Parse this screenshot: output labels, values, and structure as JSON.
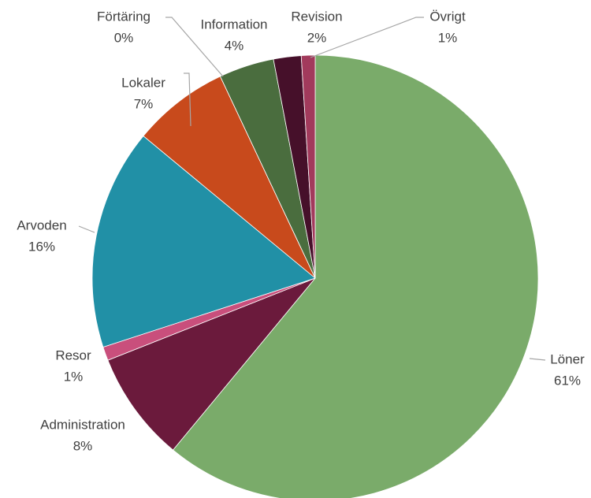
{
  "chart_data": {
    "type": "pie",
    "categories": [
      "Löner",
      "Administration",
      "Resor",
      "Arvoden",
      "Lokaler",
      "Förtäring",
      "Information",
      "Revision",
      "Övrigt"
    ],
    "values": [
      61,
      8,
      1,
      16,
      7,
      0,
      4,
      2,
      1
    ],
    "value_labels": [
      "61%",
      "8%",
      "1%",
      "16%",
      "7%",
      "0%",
      "4%",
      "2%",
      "1%"
    ],
    "colors": [
      "#7aab6a",
      "#6b1a3c",
      "#c94f7c",
      "#2190a6",
      "#c84a1c",
      "#8fa8c8",
      "#4a6d3e",
      "#46102a",
      "#a23a5c"
    ]
  }
}
